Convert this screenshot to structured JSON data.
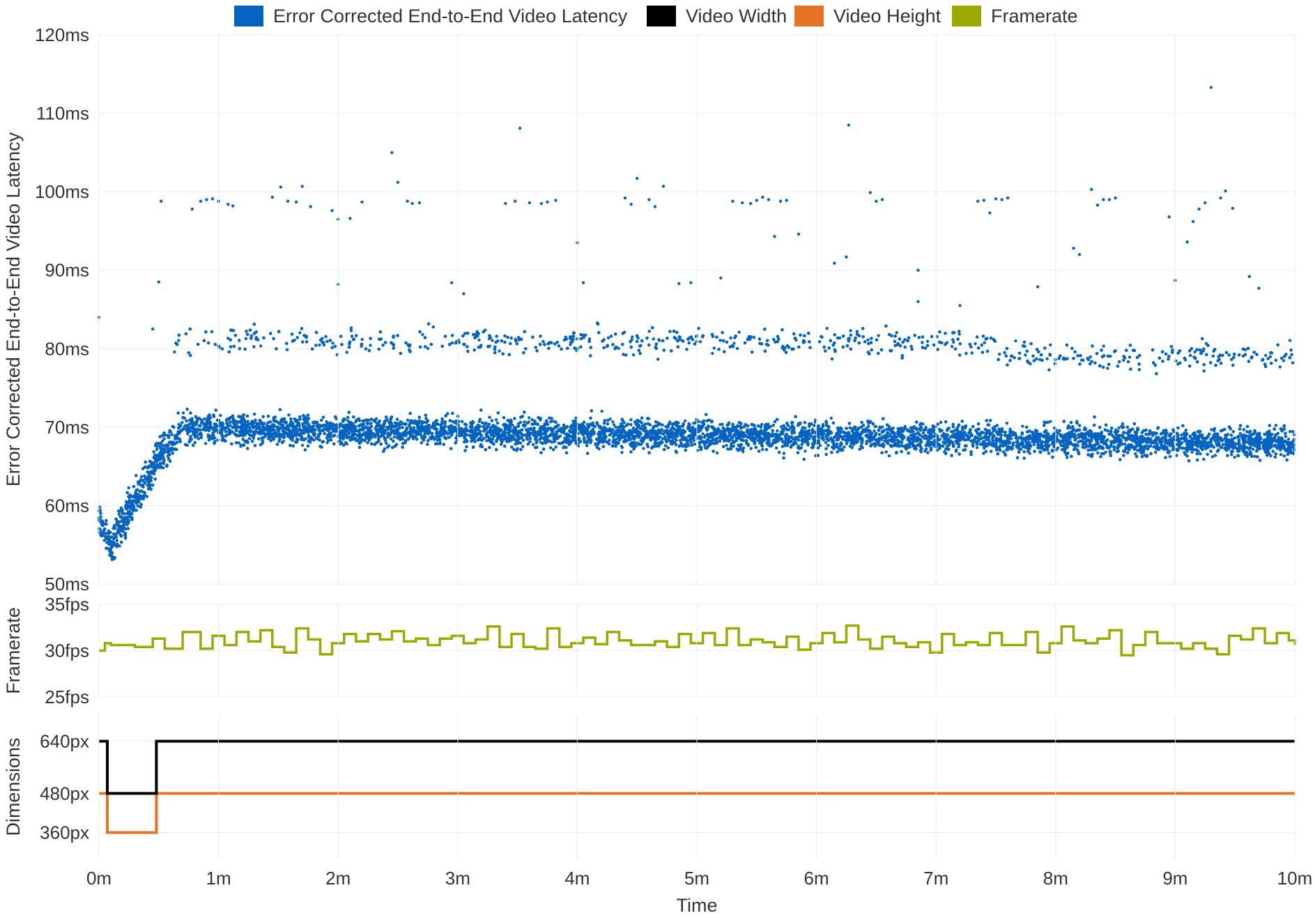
{
  "chart_data": [
    {
      "panel": "latency",
      "type": "scatter",
      "ylabel": "Error Corrected End-to-End Video Latency",
      "ylim": [
        50,
        120
      ],
      "y_ticks": [
        "120ms",
        "110ms",
        "100ms",
        "90ms",
        "80ms",
        "70ms",
        "60ms",
        "50ms"
      ],
      "y_tick_values": [
        120,
        110,
        100,
        90,
        80,
        70,
        60,
        50
      ],
      "series": [
        {
          "name": "Error Corrected End-to-End Video Latency",
          "color": "#0563c1",
          "outliers": [
            [
              0,
              84
            ],
            [
              0.5,
              88.5
            ],
            [
              0.45,
              82.5
            ],
            [
              0.52,
              98.8
            ],
            [
              0.78,
              97.8
            ],
            [
              0.85,
              98.8
            ],
            [
              0.9,
              99
            ],
            [
              0.95,
              99.1
            ],
            [
              1.0,
              98.8
            ],
            [
              1.08,
              98.4
            ],
            [
              1.12,
              98.2
            ],
            [
              1.45,
              99.3
            ],
            [
              1.52,
              100.6
            ],
            [
              1.58,
              98.8
            ],
            [
              1.65,
              98.7
            ],
            [
              1.7,
              100.7
            ],
            [
              1.77,
              98.1
            ],
            [
              1.95,
              97.6
            ],
            [
              2.0,
              96.5
            ],
            [
              2.1,
              96.6
            ],
            [
              2.2,
              98.7
            ],
            [
              2.45,
              105
            ],
            [
              2.5,
              101.2
            ],
            [
              2.58,
              98.8
            ],
            [
              2.62,
              98.5
            ],
            [
              2.68,
              98.6
            ],
            [
              3.4,
              98.5
            ],
            [
              3.48,
              98.8
            ],
            [
              3.52,
              108.1
            ],
            [
              3.6,
              98.6
            ],
            [
              3.7,
              98.5
            ],
            [
              3.75,
              98.7
            ],
            [
              3.82,
              98.9
            ],
            [
              4.0,
              93.5
            ],
            [
              4.4,
              99.2
            ],
            [
              4.45,
              98.4
            ],
            [
              4.5,
              101.7
            ],
            [
              4.6,
              99
            ],
            [
              4.65,
              98.1
            ],
            [
              4.72,
              100.7
            ],
            [
              5.2,
              89
            ],
            [
              5.3,
              98.8
            ],
            [
              5.38,
              98.6
            ],
            [
              5.45,
              98.5
            ],
            [
              5.5,
              98.9
            ],
            [
              5.55,
              99.3
            ],
            [
              5.6,
              99
            ],
            [
              5.65,
              94.3
            ],
            [
              5.7,
              98.8
            ],
            [
              5.75,
              98.9
            ],
            [
              5.85,
              94.6
            ],
            [
              6.15,
              90.9
            ],
            [
              6.25,
              91.7
            ],
            [
              6.27,
              108.5
            ],
            [
              6.45,
              99.9
            ],
            [
              6.5,
              98.8
            ],
            [
              6.55,
              99
            ],
            [
              6.85,
              90
            ],
            [
              7.35,
              98.8
            ],
            [
              7.4,
              98.9
            ],
            [
              7.45,
              97.3
            ],
            [
              7.5,
              99.1
            ],
            [
              7.55,
              99
            ],
            [
              7.6,
              99.2
            ],
            [
              8.15,
              92.8
            ],
            [
              8.2,
              92
            ],
            [
              8.3,
              100.3
            ],
            [
              8.35,
              98.3
            ],
            [
              8.4,
              99
            ],
            [
              8.45,
              99
            ],
            [
              8.5,
              99.2
            ],
            [
              8.95,
              96.8
            ],
            [
              9.1,
              93.6
            ],
            [
              9.15,
              96.2
            ],
            [
              9.2,
              97.8
            ],
            [
              9.25,
              98.6
            ],
            [
              9.3,
              113.3
            ],
            [
              9.38,
              99.2
            ],
            [
              9.42,
              100.1
            ],
            [
              9.48,
              97.9
            ],
            [
              9.62,
              89.2
            ],
            [
              9.7,
              87.7
            ],
            [
              2.0,
              88.2
            ],
            [
              2.95,
              88.4
            ],
            [
              3.05,
              87
            ],
            [
              4.05,
              88.4
            ],
            [
              4.85,
              88.3
            ],
            [
              4.95,
              88.4
            ],
            [
              6.85,
              86
            ],
            [
              7.85,
              87.9
            ],
            [
              9.0,
              88.7
            ],
            [
              7.2,
              85.5
            ]
          ]
        }
      ]
    },
    {
      "panel": "framerate",
      "type": "line",
      "ylabel": "Framerate",
      "ylim": [
        25,
        35
      ],
      "y_ticks": [
        "35fps",
        "30fps",
        "25fps"
      ],
      "y_tick_values": [
        35,
        30,
        25
      ],
      "series": [
        {
          "name": "Framerate",
          "color": "#9aaa00",
          "x": [
            0,
            0.05,
            0.1,
            0.2,
            0.3,
            0.45,
            0.55,
            0.7,
            0.85,
            0.95,
            1.05,
            1.15,
            1.25,
            1.35,
            1.45,
            1.55,
            1.65,
            1.75,
            1.85,
            1.95,
            2.05,
            2.15,
            2.25,
            2.35,
            2.45,
            2.55,
            2.65,
            2.75,
            2.85,
            2.95,
            3.05,
            3.15,
            3.25,
            3.35,
            3.45,
            3.55,
            3.65,
            3.75,
            3.85,
            3.95,
            4.05,
            4.15,
            4.25,
            4.35,
            4.45,
            4.55,
            4.65,
            4.75,
            4.85,
            4.95,
            5.05,
            5.15,
            5.25,
            5.35,
            5.45,
            5.55,
            5.65,
            5.75,
            5.85,
            5.95,
            6.05,
            6.15,
            6.25,
            6.35,
            6.45,
            6.55,
            6.65,
            6.75,
            6.85,
            6.95,
            7.05,
            7.15,
            7.25,
            7.35,
            7.45,
            7.55,
            7.65,
            7.75,
            7.85,
            7.95,
            8.05,
            8.15,
            8.25,
            8.35,
            8.45,
            8.55,
            8.65,
            8.75,
            8.85,
            8.95,
            9.05,
            9.15,
            9.25,
            9.35,
            9.45,
            9.55,
            9.65,
            9.75,
            9.85,
            9.95,
            10
          ],
          "y": [
            30,
            30.8,
            30.6,
            30.6,
            30.4,
            31.3,
            30.2,
            32,
            30.2,
            31.6,
            30.6,
            32,
            31,
            32.2,
            30.4,
            29.8,
            32.4,
            31.2,
            29.6,
            30.8,
            31.8,
            31,
            31.8,
            31.2,
            32.1,
            31,
            31.3,
            30.6,
            31.3,
            31.6,
            30.8,
            31.2,
            32.6,
            30.4,
            31.8,
            30.4,
            30.2,
            32.4,
            30.4,
            30.8,
            31.4,
            30.7,
            32,
            31.1,
            30.6,
            30.6,
            31,
            30.4,
            31.8,
            30.8,
            31.9,
            30.6,
            32.4,
            30.6,
            31.2,
            30.9,
            30.4,
            31.5,
            30.1,
            30.8,
            31.9,
            30.9,
            32.7,
            31.2,
            30.2,
            31.5,
            30.8,
            30.4,
            30.9,
            29.8,
            31.8,
            30.6,
            30.9,
            30.6,
            31.9,
            30.6,
            30.6,
            32,
            29.8,
            30.8,
            32.6,
            31.1,
            30.8,
            31.3,
            32.2,
            29.5,
            30.6,
            32,
            30.8,
            30.8,
            30.2,
            30.8,
            30.2,
            29.6,
            31.6,
            31.2,
            32.4,
            30.8,
            31.9,
            31.1,
            30.6
          ]
        }
      ]
    },
    {
      "panel": "dimensions",
      "type": "line",
      "ylabel": "Dimensions",
      "ylim": [
        280,
        720
      ],
      "y_ticks": [
        "640px",
        "480px",
        "360px"
      ],
      "y_tick_values": [
        640,
        480,
        360
      ],
      "series": [
        {
          "name": "Video Width",
          "color": "#000000",
          "x": [
            0,
            0.07,
            0.07,
            0.48,
            0.48,
            10
          ],
          "y": [
            640,
            640,
            480,
            480,
            640,
            640
          ]
        },
        {
          "name": "Video Height",
          "color": "#e57324",
          "x": [
            0,
            0.07,
            0.07,
            0.48,
            0.48,
            10
          ],
          "y": [
            480,
            480,
            360,
            360,
            480,
            480
          ]
        }
      ]
    }
  ],
  "xaxis": {
    "label": "Time",
    "range": [
      0,
      10
    ],
    "ticks": [
      "0m",
      "1m",
      "2m",
      "3m",
      "4m",
      "5m",
      "6m",
      "7m",
      "8m",
      "9m",
      "10m"
    ],
    "tick_values": [
      0,
      1,
      2,
      3,
      4,
      5,
      6,
      7,
      8,
      9,
      10
    ]
  },
  "legend": {
    "placement": "top",
    "items": [
      {
        "label": "Error Corrected End-to-End Video Latency",
        "color": "#0563c1"
      },
      {
        "label": "Video Width",
        "color": "#000000"
      },
      {
        "label": "Video Height",
        "color": "#e57324"
      },
      {
        "label": "Framerate",
        "color": "#9aaa00"
      }
    ]
  },
  "grid": true
}
